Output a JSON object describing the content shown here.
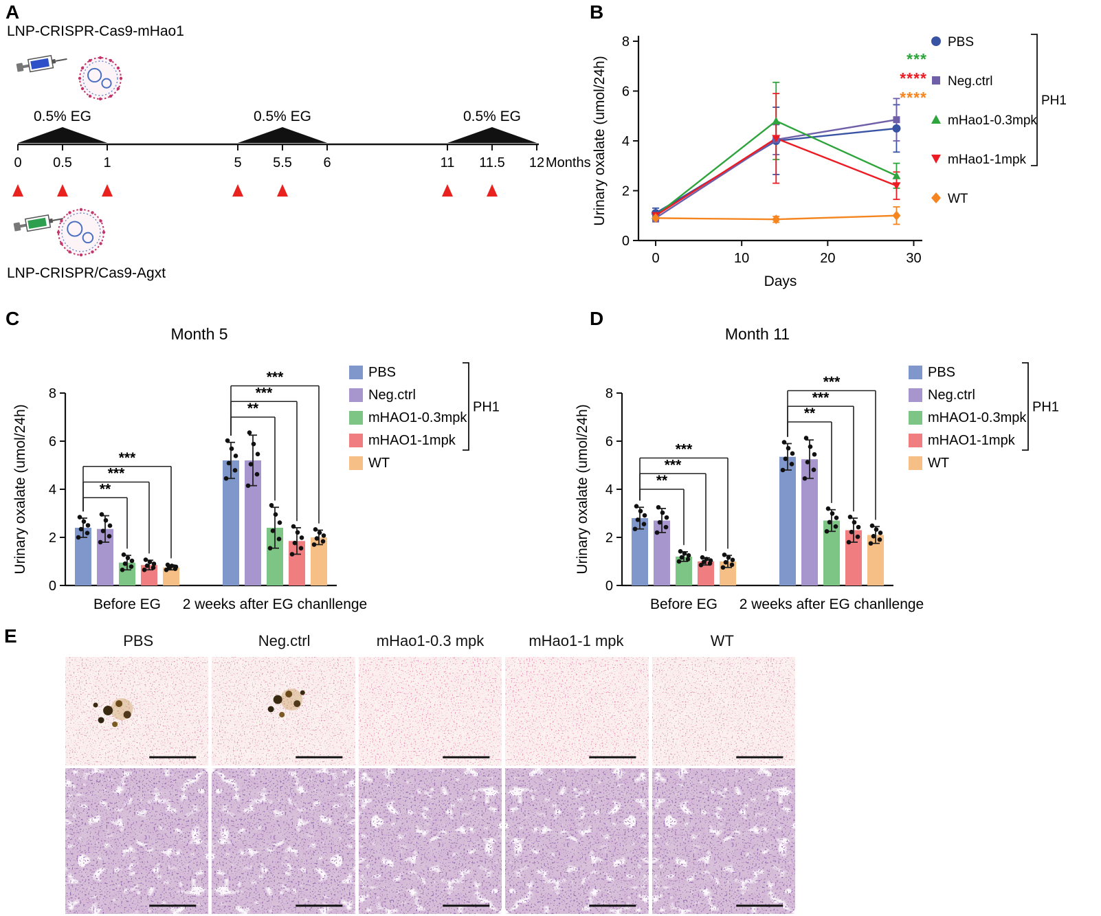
{
  "panels": {
    "A": {
      "label": "A",
      "construct_top": "LNP-CRISPR-Cas9-mHao1",
      "construct_bottom": "LNP-CRISPR/Cas9-Agxt",
      "eg_challenge_label": "0.5% EG",
      "axis_unit_label": "Months",
      "timeline_ticks": [
        "0",
        "0.5",
        "1",
        "5",
        "5.5",
        "6",
        "11",
        "11.5",
        "12"
      ],
      "eg_spans_months": [
        [
          "0",
          "1"
        ],
        [
          "5",
          "6"
        ],
        [
          "11",
          "12"
        ]
      ],
      "injection_marker_months": [
        "0",
        "0.5",
        "1",
        "5",
        "5.5",
        "11",
        "11.5"
      ]
    },
    "B": {
      "label": "B"
    },
    "C": {
      "label": "C"
    },
    "D": {
      "label": "D"
    },
    "E": {
      "label": "E",
      "column_titles": [
        "PBS",
        "Neg.ctrl",
        "mHao1-0.3 mpk",
        "mHao1-1 mpk",
        "WT"
      ],
      "stain_rows": 2,
      "crystal_deposit_columns": [
        "PBS",
        "Neg.ctrl"
      ]
    }
  },
  "chart_data": [
    {
      "id": "B",
      "type": "line",
      "title": "",
      "xlabel": "Days",
      "ylabel": "Urinary oxalate (umol/24h)",
      "x": [
        0,
        14,
        28
      ],
      "xlim": [
        -2,
        31
      ],
      "ylim": [
        0,
        8
      ],
      "xticks": [
        0,
        10,
        20,
        30
      ],
      "yticks": [
        0,
        2,
        4,
        6,
        8
      ],
      "legend_bracket_label": "PH1",
      "legend_position": "right",
      "significance": [
        {
          "text": "***",
          "color": "#2ea43c"
        },
        {
          "text": "****",
          "color": "#ed1c24"
        },
        {
          "text": "****",
          "color": "#f5851f"
        }
      ],
      "series": [
        {
          "name": "PBS",
          "color": "#3953a4",
          "marker": "circle",
          "values": [
            1.1,
            4.0,
            4.5
          ],
          "errors": [
            0.2,
            1.35,
            0.95
          ]
        },
        {
          "name": "Neg.ctrl",
          "color": "#6f5fa9",
          "marker": "square",
          "values": [
            0.9,
            4.05,
            4.85
          ],
          "errors": [
            0.15,
            0.6,
            0.85
          ]
        },
        {
          "name": "mHao1-0.3mpk",
          "color": "#2ea43c",
          "marker": "triangle-up",
          "values": [
            1.0,
            4.8,
            2.6
          ],
          "errors": [
            0.12,
            1.55,
            0.5
          ]
        },
        {
          "name": "mHao1-1mpk",
          "color": "#ed1c24",
          "marker": "triangle-down",
          "values": [
            1.0,
            4.1,
            2.2
          ],
          "errors": [
            0.12,
            1.8,
            0.55
          ]
        },
        {
          "name": "WT",
          "color": "#f5851f",
          "marker": "diamond",
          "values": [
            0.9,
            0.85,
            1.0
          ],
          "errors": [
            0.1,
            0.12,
            0.35
          ]
        }
      ]
    },
    {
      "id": "C",
      "type": "bar",
      "title": "Month 5",
      "ylabel": "Urinary oxalate (umol/24h)",
      "categories": [
        "Before EG",
        "2 weeks after EG chanllenge"
      ],
      "ylim": [
        0,
        8
      ],
      "yticks": [
        0,
        2,
        4,
        6,
        8
      ],
      "legend_bracket_label": "PH1",
      "series": [
        {
          "name": "PBS",
          "color": "#8097cb",
          "values": [
            2.4,
            5.2
          ],
          "errors": [
            0.4,
            0.75
          ]
        },
        {
          "name": "Neg.ctrl",
          "color": "#a795ce",
          "values": [
            2.35,
            5.2
          ],
          "errors": [
            0.55,
            1.05
          ]
        },
        {
          "name": "mHAO1-0.3mpk",
          "color": "#7cc584",
          "values": [
            0.95,
            2.4
          ],
          "errors": [
            0.3,
            0.85
          ]
        },
        {
          "name": "mHAO1-1mpk",
          "color": "#f07e81",
          "values": [
            0.85,
            1.85
          ],
          "errors": [
            0.2,
            0.55
          ]
        },
        {
          "name": "WT",
          "color": "#f6bf85",
          "values": [
            0.75,
            2.0
          ],
          "errors": [
            0.1,
            0.3
          ]
        }
      ],
      "significance": [
        {
          "group": 0,
          "from": 0,
          "to": 2,
          "text": "**"
        },
        {
          "group": 0,
          "from": 0,
          "to": 3,
          "text": "***"
        },
        {
          "group": 0,
          "from": 0,
          "to": 4,
          "text": "***"
        },
        {
          "group": 1,
          "from": 0,
          "to": 2,
          "text": "**"
        },
        {
          "group": 1,
          "from": 0,
          "to": 3,
          "text": "***"
        },
        {
          "group": 1,
          "from": 0,
          "to": 4,
          "text": "***"
        }
      ]
    },
    {
      "id": "D",
      "type": "bar",
      "title": "Month 11",
      "ylabel": "Urinary oxalate (umol/24h)",
      "categories": [
        "Before EG",
        "2 weeks after EG chanllenge"
      ],
      "ylim": [
        0,
        8
      ],
      "yticks": [
        0,
        2,
        4,
        6,
        8
      ],
      "legend_bracket_label": "PH1",
      "series": [
        {
          "name": "PBS",
          "color": "#8097cb",
          "values": [
            2.8,
            5.35
          ],
          "errors": [
            0.45,
            0.55
          ]
        },
        {
          "name": "Neg.ctrl",
          "color": "#a795ce",
          "values": [
            2.7,
            5.25
          ],
          "errors": [
            0.5,
            0.8
          ]
        },
        {
          "name": "mHAO1-0.3mpk",
          "color": "#7cc584",
          "values": [
            1.2,
            2.7
          ],
          "errors": [
            0.2,
            0.45
          ]
        },
        {
          "name": "mHAO1-1mpk",
          "color": "#f07e81",
          "values": [
            1.0,
            2.3
          ],
          "errors": [
            0.15,
            0.5
          ]
        },
        {
          "name": "WT",
          "color": "#f6bf85",
          "values": [
            1.0,
            2.1
          ],
          "errors": [
            0.25,
            0.35
          ]
        }
      ],
      "significance": [
        {
          "group": 0,
          "from": 0,
          "to": 2,
          "text": "**"
        },
        {
          "group": 0,
          "from": 0,
          "to": 3,
          "text": "***"
        },
        {
          "group": 0,
          "from": 0,
          "to": 4,
          "text": "***"
        },
        {
          "group": 1,
          "from": 0,
          "to": 2,
          "text": "**"
        },
        {
          "group": 1,
          "from": 0,
          "to": 3,
          "text": "***"
        },
        {
          "group": 1,
          "from": 0,
          "to": 4,
          "text": "***"
        }
      ]
    }
  ]
}
